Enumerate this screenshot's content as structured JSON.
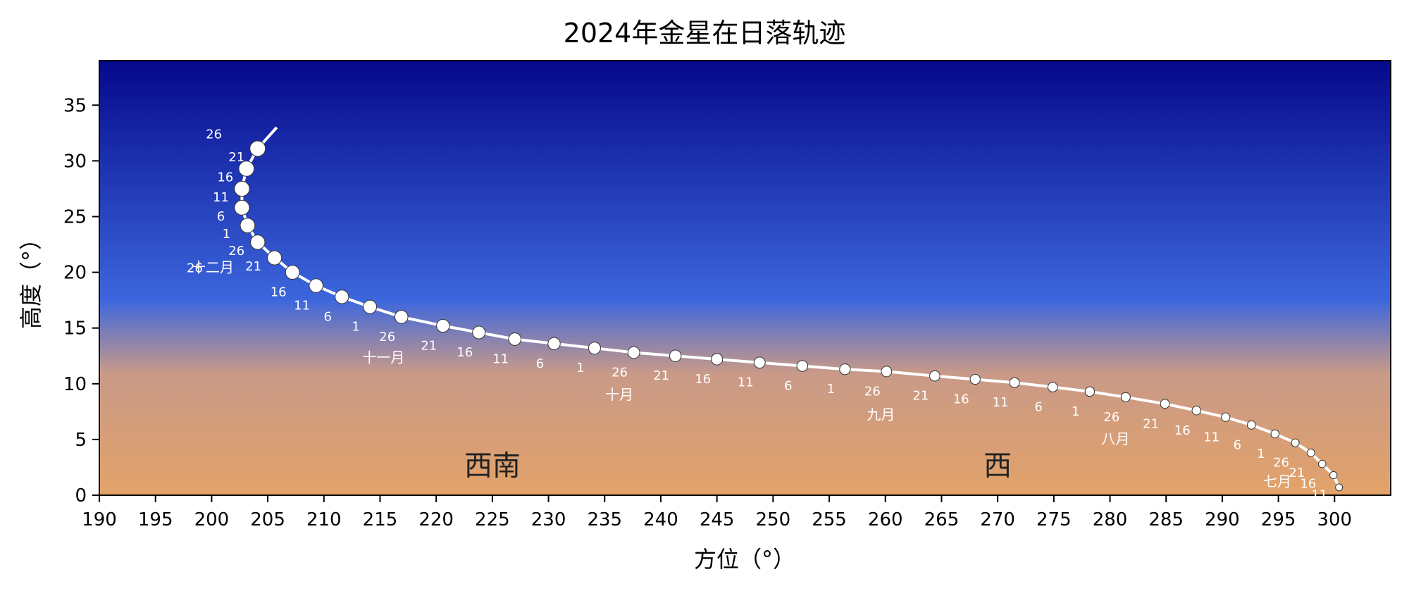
{
  "chart_data": {
    "type": "scatter",
    "title": "2024年金星在日落轨迹",
    "xlabel": "方位（°）",
    "ylabel": "高度（°）",
    "xlim": [
      190,
      305
    ],
    "ylim": [
      0,
      39
    ],
    "xticks": [
      190,
      195,
      200,
      205,
      210,
      215,
      220,
      225,
      230,
      235,
      240,
      245,
      250,
      255,
      260,
      265,
      270,
      275,
      280,
      285,
      290,
      295,
      300
    ],
    "yticks": [
      0,
      5,
      10,
      15,
      20,
      25,
      30,
      35
    ],
    "grid": false,
    "background": "gradient: dark navy at top, blue in middle, orange near horizon",
    "colors": {
      "sky_top": "#05098a",
      "sky_mid": "#3c66dd",
      "sky_low": "#c99a88",
      "sky_bottom": "#e3a268",
      "marker": "#ffffff",
      "track": "#ffffff"
    },
    "track_end": {
      "x": 205.8,
      "y": 33.0
    },
    "points": [
      {
        "x": 300.4,
        "y": 0.7,
        "label": ""
      },
      {
        "x": 299.9,
        "y": 1.8,
        "label": "11"
      },
      {
        "x": 298.9,
        "y": 2.8,
        "label": "16"
      },
      {
        "x": 297.9,
        "y": 3.8,
        "label": "21"
      },
      {
        "x": 296.5,
        "y": 4.7,
        "label": "26"
      },
      {
        "x": 294.7,
        "y": 5.5,
        "label": "1"
      },
      {
        "x": 292.6,
        "y": 6.3,
        "label": "6"
      },
      {
        "x": 290.3,
        "y": 7.0,
        "label": "11"
      },
      {
        "x": 287.7,
        "y": 7.6,
        "label": "16"
      },
      {
        "x": 284.9,
        "y": 8.2,
        "label": "21"
      },
      {
        "x": 281.4,
        "y": 8.8,
        "label": "26"
      },
      {
        "x": 278.2,
        "y": 9.3,
        "label": "1"
      },
      {
        "x": 274.9,
        "y": 9.7,
        "label": "6"
      },
      {
        "x": 271.5,
        "y": 10.1,
        "label": "11"
      },
      {
        "x": 268.0,
        "y": 10.4,
        "label": "16"
      },
      {
        "x": 264.4,
        "y": 10.7,
        "label": "21"
      },
      {
        "x": 260.1,
        "y": 11.1,
        "label": "26"
      },
      {
        "x": 256.4,
        "y": 11.3,
        "label": "1"
      },
      {
        "x": 252.6,
        "y": 11.6,
        "label": "6"
      },
      {
        "x": 248.8,
        "y": 11.9,
        "label": "11"
      },
      {
        "x": 245.0,
        "y": 12.2,
        "label": "16"
      },
      {
        "x": 241.3,
        "y": 12.5,
        "label": "21"
      },
      {
        "x": 237.6,
        "y": 12.8,
        "label": "26"
      },
      {
        "x": 234.1,
        "y": 13.2,
        "label": "1"
      },
      {
        "x": 230.5,
        "y": 13.6,
        "label": "6"
      },
      {
        "x": 227.0,
        "y": 14.0,
        "label": "11"
      },
      {
        "x": 223.8,
        "y": 14.6,
        "label": "16"
      },
      {
        "x": 220.6,
        "y": 15.2,
        "label": "21"
      },
      {
        "x": 216.9,
        "y": 16.0,
        "label": "26"
      },
      {
        "x": 214.1,
        "y": 16.9,
        "label": "1"
      },
      {
        "x": 211.6,
        "y": 17.8,
        "label": "6"
      },
      {
        "x": 209.3,
        "y": 18.8,
        "label": "11"
      },
      {
        "x": 207.2,
        "y": 20.0,
        "label": "16"
      },
      {
        "x": 205.6,
        "y": 21.3,
        "label": "21"
      },
      {
        "x": 204.1,
        "y": 22.7,
        "label": "26"
      },
      {
        "x": 203.2,
        "y": 24.2,
        "label": "1"
      },
      {
        "x": 202.7,
        "y": 25.8,
        "label": "6"
      },
      {
        "x": 202.7,
        "y": 27.5,
        "label": "11"
      },
      {
        "x": 203.1,
        "y": 29.3,
        "label": "16"
      },
      {
        "x": 204.1,
        "y": 31.1,
        "label": "21"
      }
    ],
    "extra_labels": [
      {
        "text": "26",
        "x": 200.2,
        "y": 32.0
      },
      {
        "text": "26",
        "x": 198.5,
        "y": 20.0,
        "month": true
      }
    ],
    "month_labels": [
      {
        "text": "七月",
        "x": 294.9,
        "y": 0.8
      },
      {
        "text": "八月",
        "x": 280.5,
        "y": 4.6
      },
      {
        "text": "九月",
        "x": 259.6,
        "y": 6.8
      },
      {
        "text": "十月",
        "x": 236.3,
        "y": 8.6
      },
      {
        "text": "十一月",
        "x": 215.3,
        "y": 11.9
      },
      {
        "text": "十二月",
        "x": 200.1,
        "y": 20.0
      }
    ],
    "direction_labels": [
      {
        "text": "西南",
        "x": 225.0,
        "y": 1.8
      },
      {
        "text": "西",
        "x": 270.0,
        "y": 1.8
      }
    ]
  }
}
